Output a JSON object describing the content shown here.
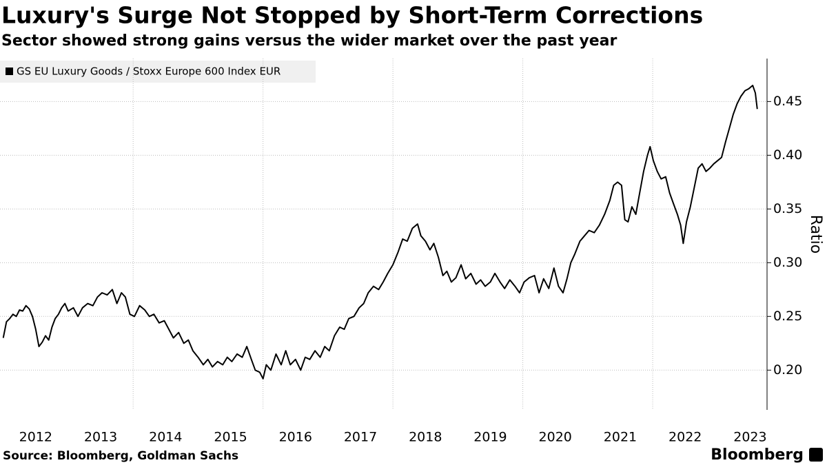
{
  "chart_data": {
    "type": "line",
    "title": "Luxury's Surge Not Stopped by Short-Term Corrections",
    "subtitle": "Sector showed strong gains versus the wider market over the past year",
    "legend": "GS EU Luxury Goods / Stoxx Europe 600 Index EUR",
    "y_label": "Ratio",
    "source": "Source: Bloomberg, Goldman Sachs",
    "logo": "Bloomberg",
    "color": "#000000",
    "grid": true,
    "xlim": [
      2011.95,
      2023.75
    ],
    "ylim": [
      0.163,
      0.49
    ],
    "yticks": [
      {
        "value": 0.2,
        "label": "0.20"
      },
      0.25,
      {
        "value": 0.3,
        "label": "0.30"
      },
      0.35,
      {
        "value": 0.4,
        "label": "0.40"
      },
      0.45
    ],
    "xticks": [
      {
        "value": 2012.5,
        "label": "2012"
      },
      {
        "value": 2013.5,
        "label": "2013"
      },
      {
        "value": 2014.5,
        "label": "2014"
      },
      {
        "value": 2015.5,
        "label": "2015"
      },
      {
        "value": 2016.5,
        "label": "2016"
      },
      {
        "value": 2017.5,
        "label": "2017"
      },
      {
        "value": 2018.5,
        "label": "2018"
      },
      {
        "value": 2019.5,
        "label": "2019"
      },
      {
        "value": 2020.5,
        "label": "2020"
      },
      {
        "value": 2021.5,
        "label": "2021"
      },
      {
        "value": 2022.5,
        "label": "2022"
      },
      {
        "value": 2023.5,
        "label": "2023"
      }
    ],
    "x_gridlines": [
      2014,
      2016,
      2018,
      2020,
      2022
    ],
    "x": [
      2012.0,
      2012.05,
      2012.1,
      2012.15,
      2012.2,
      2012.25,
      2012.3,
      2012.35,
      2012.4,
      2012.45,
      2012.5,
      2012.55,
      2012.6,
      2012.65,
      2012.7,
      2012.75,
      2012.8,
      2012.85,
      2012.9,
      2012.95,
      2013.0,
      2013.08,
      2013.15,
      2013.22,
      2013.3,
      2013.38,
      2013.45,
      2013.52,
      2013.6,
      2013.68,
      2013.75,
      2013.82,
      2013.88,
      2013.95,
      2014.02,
      2014.1,
      2014.18,
      2014.25,
      2014.32,
      2014.4,
      2014.48,
      2014.55,
      2014.62,
      2014.7,
      2014.78,
      2014.85,
      2014.92,
      2015.0,
      2015.08,
      2015.15,
      2015.22,
      2015.3,
      2015.38,
      2015.45,
      2015.52,
      2015.6,
      2015.68,
      2015.75,
      2015.82,
      2015.88,
      2015.95,
      2016.0,
      2016.05,
      2016.12,
      2016.2,
      2016.28,
      2016.35,
      2016.42,
      2016.5,
      2016.58,
      2016.65,
      2016.72,
      2016.8,
      2016.88,
      2016.95,
      2017.02,
      2017.1,
      2017.18,
      2017.25,
      2017.32,
      2017.4,
      2017.48,
      2017.55,
      2017.62,
      2017.7,
      2017.78,
      2017.85,
      2017.92,
      2018.0,
      2018.08,
      2018.15,
      2018.22,
      2018.3,
      2018.38,
      2018.43,
      2018.5,
      2018.57,
      2018.63,
      2018.7,
      2018.77,
      2018.83,
      2018.9,
      2018.97,
      2019.05,
      2019.12,
      2019.2,
      2019.28,
      2019.35,
      2019.42,
      2019.5,
      2019.57,
      2019.65,
      2019.72,
      2019.8,
      2019.88,
      2019.95,
      2020.02,
      2020.1,
      2020.18,
      2020.25,
      2020.32,
      2020.4,
      2020.48,
      2020.55,
      2020.62,
      2020.68,
      2020.74,
      2020.8,
      2020.88,
      2020.95,
      2021.02,
      2021.1,
      2021.18,
      2021.26,
      2021.34,
      2021.4,
      2021.46,
      2021.52,
      2021.57,
      2021.62,
      2021.68,
      2021.74,
      2021.8,
      2021.86,
      2021.92,
      2021.96,
      2022.01,
      2022.07,
      2022.13,
      2022.2,
      2022.26,
      2022.32,
      2022.38,
      2022.43,
      2022.47,
      2022.52,
      2022.58,
      2022.64,
      2022.7,
      2022.76,
      2022.82,
      2022.88,
      2022.94,
      2023.0,
      2023.06,
      2023.12,
      2023.18,
      2023.24,
      2023.3,
      2023.36,
      2023.42,
      2023.48,
      2023.54,
      2023.58,
      2023.61
    ],
    "values": [
      0.23,
      0.245,
      0.248,
      0.252,
      0.25,
      0.256,
      0.255,
      0.26,
      0.257,
      0.25,
      0.238,
      0.222,
      0.226,
      0.232,
      0.228,
      0.24,
      0.248,
      0.252,
      0.258,
      0.262,
      0.255,
      0.258,
      0.25,
      0.258,
      0.262,
      0.26,
      0.268,
      0.272,
      0.27,
      0.275,
      0.262,
      0.272,
      0.268,
      0.252,
      0.25,
      0.26,
      0.256,
      0.25,
      0.252,
      0.244,
      0.246,
      0.238,
      0.23,
      0.235,
      0.225,
      0.228,
      0.218,
      0.212,
      0.205,
      0.21,
      0.203,
      0.208,
      0.205,
      0.212,
      0.208,
      0.215,
      0.212,
      0.222,
      0.21,
      0.2,
      0.198,
      0.192,
      0.205,
      0.2,
      0.215,
      0.205,
      0.218,
      0.205,
      0.21,
      0.2,
      0.212,
      0.21,
      0.218,
      0.212,
      0.222,
      0.218,
      0.232,
      0.24,
      0.238,
      0.248,
      0.25,
      0.258,
      0.262,
      0.272,
      0.278,
      0.275,
      0.282,
      0.29,
      0.298,
      0.31,
      0.322,
      0.32,
      0.332,
      0.336,
      0.325,
      0.32,
      0.312,
      0.318,
      0.305,
      0.288,
      0.292,
      0.282,
      0.286,
      0.298,
      0.285,
      0.29,
      0.28,
      0.284,
      0.278,
      0.282,
      0.29,
      0.282,
      0.276,
      0.284,
      0.278,
      0.272,
      0.282,
      0.286,
      0.288,
      0.272,
      0.285,
      0.276,
      0.295,
      0.278,
      0.272,
      0.285,
      0.3,
      0.308,
      0.32,
      0.325,
      0.33,
      0.328,
      0.335,
      0.345,
      0.358,
      0.372,
      0.375,
      0.372,
      0.34,
      0.338,
      0.352,
      0.345,
      0.365,
      0.385,
      0.4,
      0.408,
      0.395,
      0.385,
      0.378,
      0.38,
      0.365,
      0.355,
      0.345,
      0.335,
      0.318,
      0.338,
      0.352,
      0.37,
      0.388,
      0.392,
      0.385,
      0.388,
      0.392,
      0.395,
      0.398,
      0.412,
      0.425,
      0.438,
      0.448,
      0.455,
      0.46,
      0.462,
      0.465,
      0.458,
      0.443
    ]
  }
}
